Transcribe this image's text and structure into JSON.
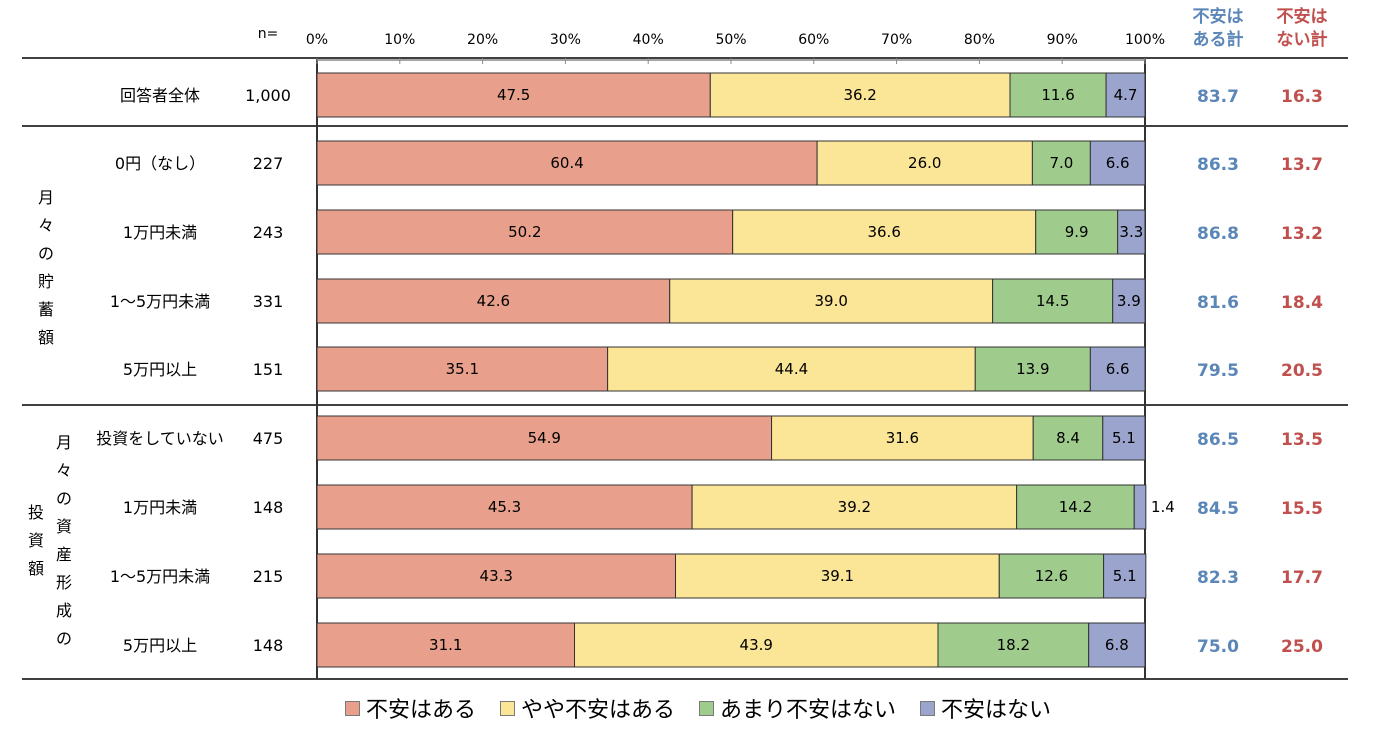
{
  "chart_data": {
    "type": "bar",
    "orientation": "horizontal",
    "stacked": true,
    "xlim": [
      0,
      100
    ],
    "x_ticks": [
      "0%",
      "10%",
      "20%",
      "30%",
      "40%",
      "50%",
      "60%",
      "70%",
      "80%",
      "90%",
      "100%"
    ],
    "n_header": "n=",
    "sum_headers": [
      [
        "不安は",
        "ある計"
      ],
      [
        "不安は",
        "ない計"
      ]
    ],
    "groups": [
      {
        "label": "",
        "rows": [
          0
        ]
      },
      {
        "label": "月々の貯蓄額",
        "rows": [
          1,
          2,
          3,
          4
        ]
      },
      {
        "label_col1": "月々の資産形成の",
        "label_col2": "投資額",
        "rows": [
          5,
          6,
          7,
          8
        ]
      }
    ],
    "categories": [
      "回答者全体",
      "0円（なし）",
      "1万円未満",
      "1～5万円未満",
      "5万円以上",
      "投資をしていない",
      "1万円未満",
      "1～5万円未満",
      "5万円以上"
    ],
    "n": [
      "1,000",
      "227",
      "243",
      "331",
      "151",
      "475",
      "148",
      "215",
      "148"
    ],
    "series": [
      {
        "name": "不安はある",
        "values": [
          47.5,
          60.4,
          50.2,
          42.6,
          35.1,
          54.9,
          45.3,
          43.3,
          31.1
        ]
      },
      {
        "name": "やや不安はある",
        "values": [
          36.2,
          26.0,
          36.6,
          39.0,
          44.4,
          31.6,
          39.2,
          39.1,
          43.9
        ]
      },
      {
        "name": "あまり不安はない",
        "values": [
          11.6,
          7.0,
          9.9,
          14.5,
          13.9,
          8.4,
          14.2,
          12.6,
          18.2
        ]
      },
      {
        "name": "不安はない",
        "values": [
          4.7,
          6.6,
          3.3,
          3.9,
          6.6,
          5.1,
          1.4,
          5.1,
          6.8
        ]
      }
    ],
    "colors": [
      "#e8a08c",
      "#fbe597",
      "#9fcc8d",
      "#9aa4cc"
    ],
    "sum_some_anxiety": [
      83.7,
      86.3,
      86.8,
      81.6,
      79.5,
      86.5,
      84.5,
      82.3,
      75.0
    ],
    "sum_no_anxiety": [
      16.3,
      13.7,
      13.2,
      18.4,
      20.5,
      13.5,
      15.5,
      17.7,
      25.0
    ],
    "sum_colors": [
      "#5b86b8",
      "#c0504d"
    ],
    "legend_position": "bottom"
  }
}
